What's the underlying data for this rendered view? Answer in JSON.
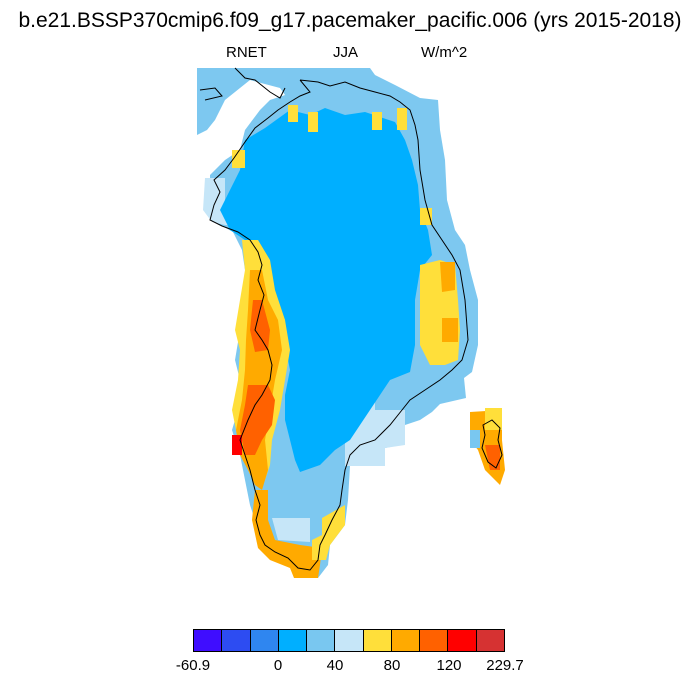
{
  "title": "b.e21.BSSP370cmip6.f09_g17.pacemaker_pacific.006 (yrs 2015-2018)",
  "variable": "RNET",
  "season": "JJA",
  "units": "W/m^2",
  "colorbar": {
    "colors": [
      "#3f0dff",
      "#2d4cf2",
      "#2f86f0",
      "#00afff",
      "#79c7f0",
      "#c6e6f8",
      "#ffdf3a",
      "#ffaa00",
      "#ff6100",
      "#ff0000",
      "#d63232"
    ],
    "tick_labels": [
      "-60.9",
      "0",
      "40",
      "80",
      "120",
      "229.7"
    ]
  },
  "palette": {
    "water": "#7dc8f0",
    "ice_interior": "#00afff",
    "margin_light": "#c6e6f8",
    "yellow": "#ffdf3a",
    "orange": "#ffaa00",
    "dark_orange": "#ff6100",
    "red": "#ff0000"
  }
}
